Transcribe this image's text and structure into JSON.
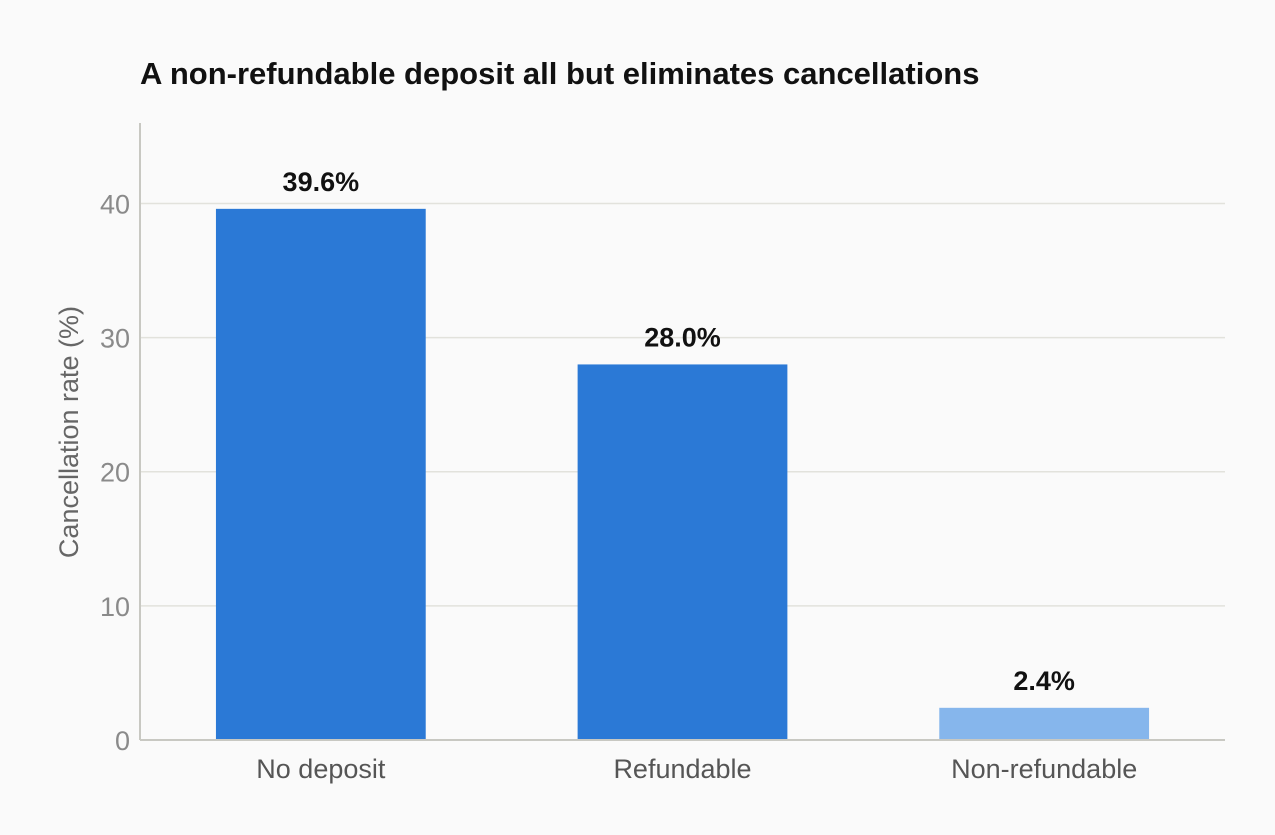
{
  "chart_data": {
    "type": "bar",
    "title": "A non-refundable deposit all but eliminates cancellations",
    "xlabel": "",
    "ylabel": "Cancellation rate (%)",
    "categories": [
      "No deposit",
      "Refundable",
      "Non-refundable"
    ],
    "values": [
      39.6,
      28.0,
      2.4
    ],
    "data_labels": [
      "39.6%",
      "28.0%",
      "2.4%"
    ],
    "bar_colors": [
      "#2b79d6",
      "#2b79d6",
      "#86b6ec"
    ],
    "ylim": [
      0,
      46
    ],
    "yticks": [
      0,
      10,
      20,
      30,
      40
    ],
    "grid": true,
    "legend": "none"
  }
}
